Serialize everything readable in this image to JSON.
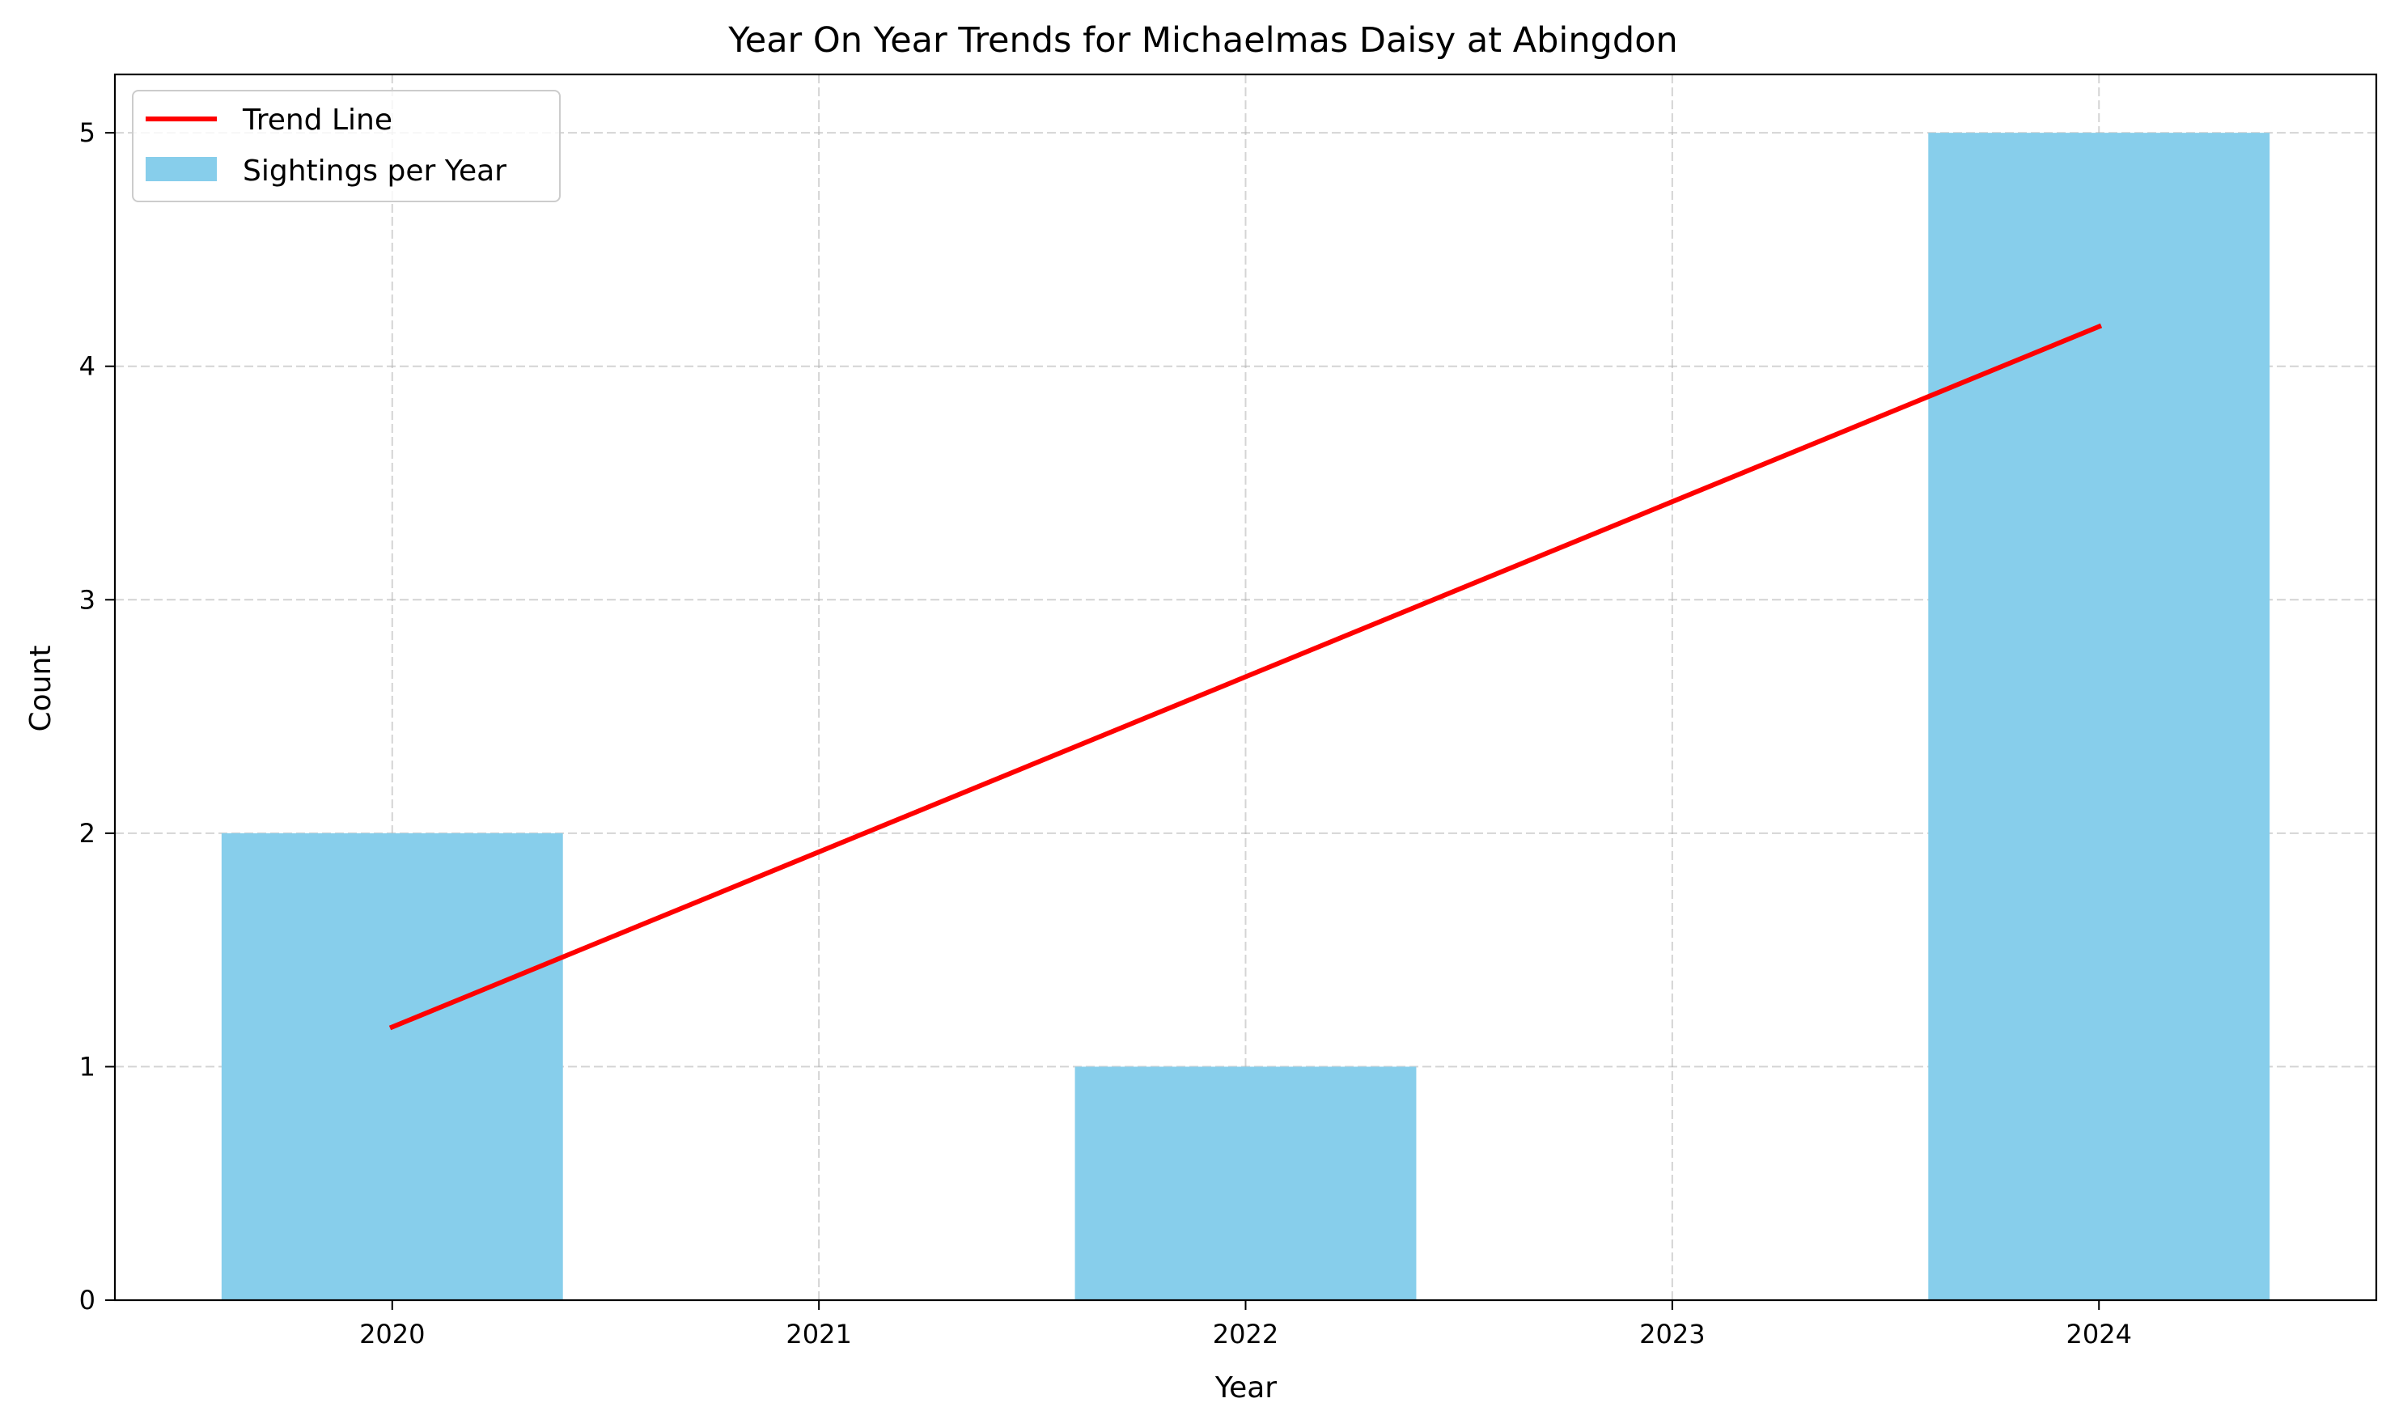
{
  "chart_data": {
    "type": "bar",
    "title": "Year On Year Trends for Michaelmas Daisy at Abingdon",
    "xlabel": "Year",
    "ylabel": "Count",
    "categories": [
      "2020",
      "2021",
      "2022",
      "2023",
      "2024"
    ],
    "series": [
      {
        "name": "Sightings per Year",
        "type": "bar",
        "values": [
          2,
          0,
          1,
          0,
          5
        ],
        "color": "#87CEEB"
      },
      {
        "name": "Trend Line",
        "type": "line",
        "values": [
          1.17,
          1.92,
          2.67,
          3.42,
          4.17
        ],
        "color": "#FF0000"
      }
    ],
    "ylim": [
      0,
      5.25
    ],
    "yticks": [
      0,
      1,
      2,
      3,
      4,
      5
    ],
    "grid": true,
    "legend_position": "top-left"
  }
}
